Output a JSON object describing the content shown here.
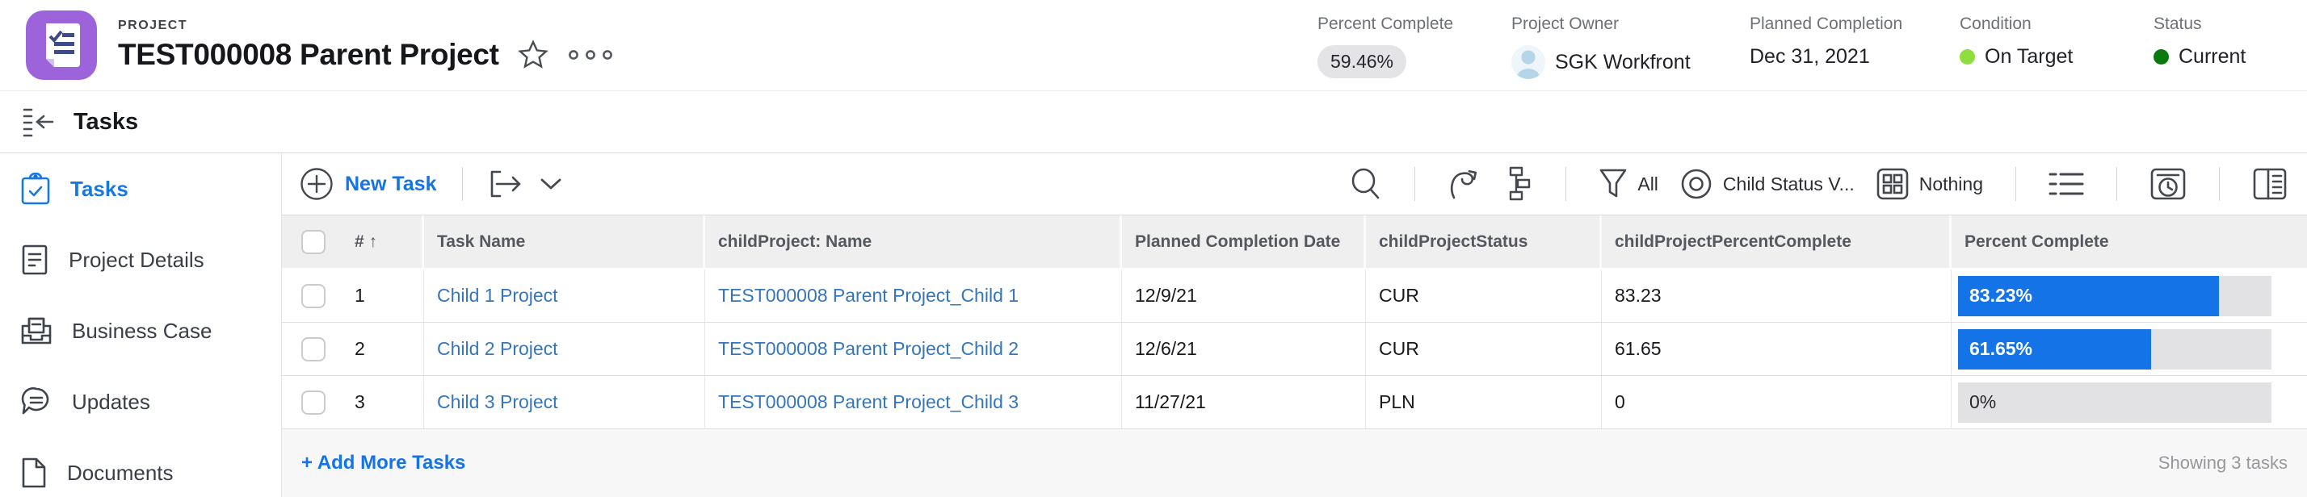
{
  "header": {
    "type_label": "PROJECT",
    "title": "TEST000008 Parent Project",
    "metrics": [
      {
        "label": "Percent Complete",
        "value": "59.46%"
      },
      {
        "label": "Project Owner",
        "value": "SGK Workfront"
      },
      {
        "label": "Planned Completion",
        "value": "Dec 31, 2021"
      },
      {
        "label": "Condition",
        "value": "On Target",
        "dot_color": "#8fdd3e"
      },
      {
        "label": "Status",
        "value": "Current",
        "dot_color": "#0a7a0d"
      }
    ]
  },
  "section_bar": {
    "title": "Tasks"
  },
  "sidebar": {
    "items": [
      {
        "label": "Tasks",
        "active": true
      },
      {
        "label": "Project Details",
        "active": false
      },
      {
        "label": "Business Case",
        "active": false
      },
      {
        "label": "Updates",
        "active": false
      },
      {
        "label": "Documents",
        "active": false
      }
    ]
  },
  "toolbar": {
    "new_task_label": "New Task",
    "filter_label": "All",
    "view_label": "Child Status V...",
    "grouping_label": "Nothing"
  },
  "table": {
    "columns": [
      "# ↑",
      "Task Name",
      "childProject: Name",
      "Planned Completion Date",
      "childProjectStatus",
      "childProjectPercentComplete",
      "Percent Complete"
    ],
    "sort_column_arrow": "↑",
    "rows": [
      {
        "num": "1",
        "task": "Child 1 Project",
        "project": "TEST000008 Parent Project_Child 1",
        "date": "12/9/21",
        "status": "CUR",
        "pct_text": "83.23",
        "pct": 83.23,
        "bar_label": "83.23%"
      },
      {
        "num": "2",
        "task": "Child 2 Project",
        "project": "TEST000008 Parent Project_Child 2",
        "date": "12/6/21",
        "status": "CUR",
        "pct_text": "61.65",
        "pct": 61.65,
        "bar_label": "61.65%"
      },
      {
        "num": "3",
        "task": "Child 3 Project",
        "project": "TEST000008 Parent Project_Child 3",
        "date": "11/27/21",
        "status": "PLN",
        "pct_text": "0",
        "pct": 0,
        "bar_label": "0%"
      }
    ],
    "add_more_label": "+ Add More Tasks",
    "footer_status": "Showing 3 tasks"
  },
  "colors": {
    "accent_blue": "#1473e6",
    "link_blue": "#3576ba",
    "project_icon_purple": "#9c63da",
    "progress_fill": "#1473e6",
    "condition_dot": "#8fdd3e",
    "status_dot": "#0a7a0d"
  }
}
